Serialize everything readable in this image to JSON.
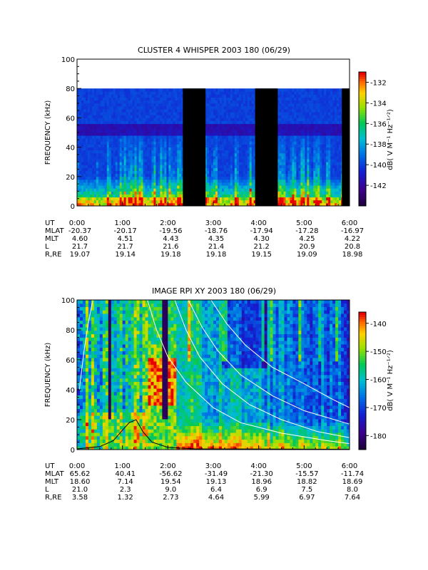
{
  "chart_data": [
    {
      "type": "heatmap",
      "title": "CLUSTER 4 WHISPER 2003 180 (06/29)",
      "ylabel": "FREQUENCY (kHz)",
      "ylim": [
        0,
        100
      ],
      "xlim_hours": [
        0,
        6
      ],
      "y_ticks": [
        "0",
        "20",
        "40",
        "60",
        "80",
        "100"
      ],
      "data_ceiling_khz": 80,
      "data_gaps_hours": [
        [
          2.33,
          2.83
        ],
        [
          3.92,
          4.42
        ],
        [
          5.83,
          6.0
        ]
      ],
      "colorbar": {
        "label": "dB( V M⁻¹ Hz⁻¹ᐟ²)",
        "range": [
          -144,
          -131
        ],
        "ticks": [
          "-132",
          "-134",
          "-136",
          "-138",
          "-140",
          "-142"
        ]
      },
      "ephemeris": {
        "row_labels": [
          "UT",
          "MLAT",
          "MLT",
          "L",
          "R,RE"
        ],
        "columns": [
          {
            "UT": "0:00",
            "MLAT": "-20.37",
            "MLT": "4.60",
            "L": "21.7",
            "R,RE": "19.07"
          },
          {
            "UT": "1:00",
            "MLAT": "-20.17",
            "MLT": "4.51",
            "L": "21.7",
            "R,RE": "19.14"
          },
          {
            "UT": "2:00",
            "MLAT": "-19.56",
            "MLT": "4.43",
            "L": "21.6",
            "R,RE": "19.18"
          },
          {
            "UT": "3:00",
            "MLAT": "-18.76",
            "MLT": "4.35",
            "L": "21.4",
            "R,RE": "19.18"
          },
          {
            "UT": "4:00",
            "MLAT": "-17.94",
            "MLT": "4.30",
            "L": "21.2",
            "R,RE": "19.15"
          },
          {
            "UT": "5:00",
            "MLAT": "-17.28",
            "MLT": "4.25",
            "L": "20.9",
            "R,RE": "19.09"
          },
          {
            "UT": "6:00",
            "MLAT": "-16.97",
            "MLT": "4.22",
            "L": "20.8",
            "R,RE": "18.98"
          }
        ]
      }
    },
    {
      "type": "heatmap",
      "title": "IMAGE RPI XY 2003 180 (06/29)",
      "ylabel": "FREQUENCY (kHz)",
      "ylim": [
        0,
        100
      ],
      "xlim_hours": [
        0,
        6
      ],
      "y_ticks": [
        "0",
        "20",
        "40",
        "60",
        "80",
        "100"
      ],
      "colorbar": {
        "label": "dB( V M⁻¹ Hz⁻¹ᐟ²)",
        "range": [
          -185,
          -136
        ],
        "ticks": [
          "-140",
          "-150",
          "-160",
          "-170",
          "-180"
        ]
      },
      "ephemeris": {
        "row_labels": [
          "UT",
          "MLAT",
          "MLT",
          "L",
          "R,RE"
        ],
        "columns": [
          {
            "UT": "0:00",
            "MLAT": "65.62",
            "MLT": "18.60",
            "L": "21.0",
            "R,RE": "3.58"
          },
          {
            "UT": "1:00",
            "MLAT": "40.41",
            "MLT": "7.14",
            "L": "2.3",
            "R,RE": "1.32"
          },
          {
            "UT": "2:00",
            "MLAT": "-56.62",
            "MLT": "19.54",
            "L": "9.0",
            "R,RE": "2.73"
          },
          {
            "UT": "3:00",
            "MLAT": "-31.49",
            "MLT": "19.13",
            "L": "6.4",
            "R,RE": "4.64"
          },
          {
            "UT": "4:00",
            "MLAT": "-21.30",
            "MLT": "18.96",
            "L": "6.9",
            "R,RE": "5.99"
          },
          {
            "UT": "5:00",
            "MLAT": "-15.57",
            "MLT": "18.82",
            "L": "7.5",
            "R,RE": "6.97"
          },
          {
            "UT": "6:00",
            "MLAT": "-11.74",
            "MLT": "18.69",
            "L": "8.0",
            "R,RE": "7.64"
          }
        ]
      },
      "overlay_curves": {
        "black": [
          [
            0,
            0.5
          ],
          [
            0.5,
            2
          ],
          [
            0.8,
            6
          ],
          [
            1.0,
            13
          ],
          [
            1.15,
            18
          ],
          [
            1.3,
            20
          ],
          [
            1.45,
            12
          ],
          [
            1.65,
            5
          ],
          [
            2.0,
            1.5
          ],
          [
            2.6,
            0.5
          ],
          [
            6,
            0.2
          ]
        ],
        "white": [
          [
            [
              0.05,
              40
            ],
            [
              0.15,
              65
            ],
            [
              0.25,
              85
            ],
            [
              0.35,
              100
            ]
          ],
          [
            [
              1.55,
              100
            ],
            [
              1.75,
              80
            ],
            [
              2.0,
              62
            ],
            [
              2.4,
              45
            ],
            [
              3.0,
              28
            ],
            [
              3.6,
              18
            ],
            [
              4.5,
              11
            ],
            [
              5.5,
              6
            ],
            [
              6,
              4
            ]
          ],
          [
            [
              2.15,
              100
            ],
            [
              2.4,
              80
            ],
            [
              2.7,
              62
            ],
            [
              3.2,
              44
            ],
            [
              3.8,
              30
            ],
            [
              4.5,
              20
            ],
            [
              5.3,
              12
            ],
            [
              6,
              8
            ]
          ],
          [
            [
              2.45,
              100
            ],
            [
              2.75,
              82
            ],
            [
              3.1,
              66
            ],
            [
              3.6,
              50
            ],
            [
              4.3,
              36
            ],
            [
              5.0,
              26
            ],
            [
              6,
              17
            ]
          ],
          [
            [
              2.95,
              100
            ],
            [
              3.3,
              84
            ],
            [
              3.7,
              70
            ],
            [
              4.3,
              55
            ],
            [
              5.0,
              44
            ],
            [
              5.6,
              34
            ],
            [
              6,
              28
            ]
          ]
        ]
      }
    }
  ]
}
